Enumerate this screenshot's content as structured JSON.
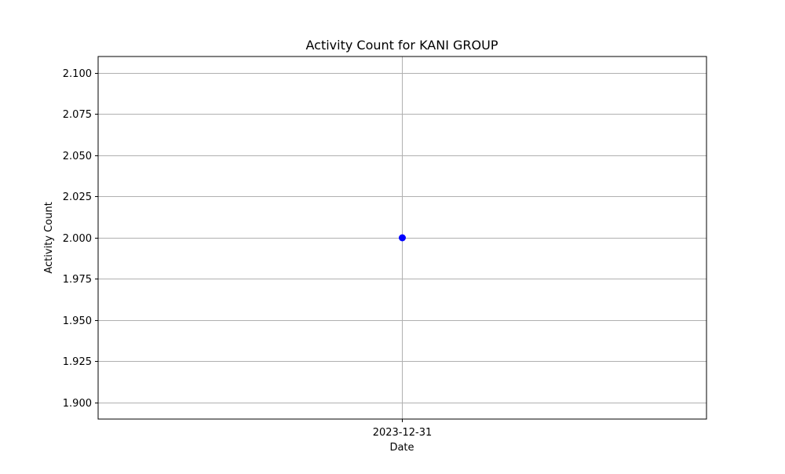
{
  "chart_data": {
    "type": "scatter",
    "title": "Activity Count for KANI GROUP",
    "xlabel": "Date",
    "ylabel": "Activity Count",
    "x": [
      "2023-12-31"
    ],
    "series": [
      {
        "values": [
          2.0
        ],
        "color": "#0000ff",
        "marker": "circle"
      }
    ],
    "x_ticks": [
      "2023-12-31"
    ],
    "y_ticks": [
      1.9,
      1.925,
      1.95,
      1.975,
      2.0,
      2.025,
      2.05,
      2.075,
      2.1
    ],
    "y_tick_labels": [
      "1.900",
      "1.925",
      "1.950",
      "1.975",
      "2.000",
      "2.025",
      "2.050",
      "2.075",
      "2.100"
    ],
    "ylim": [
      1.89,
      2.11
    ],
    "grid": true,
    "legend": "none"
  }
}
